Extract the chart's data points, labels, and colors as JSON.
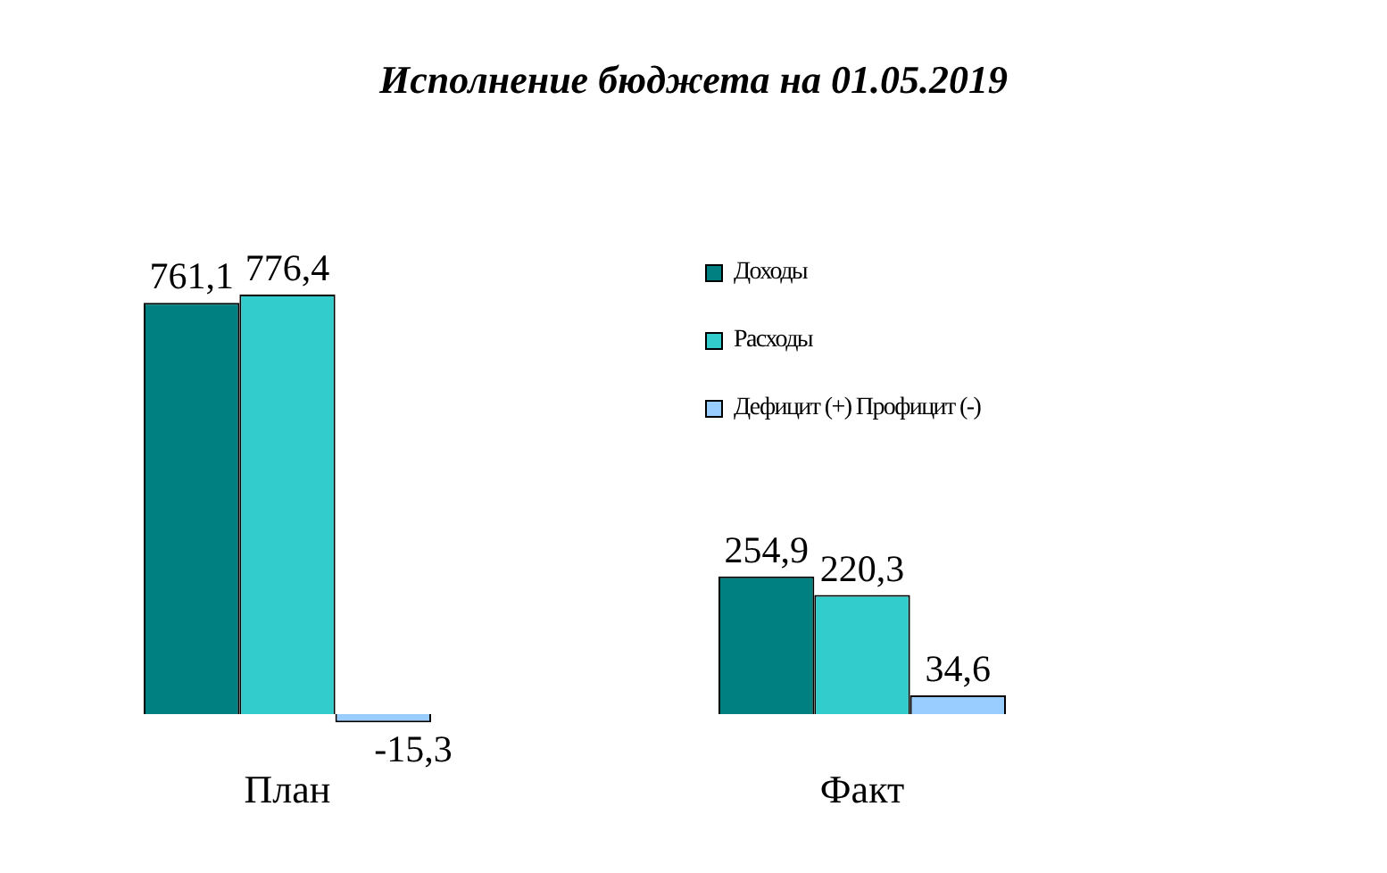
{
  "chart_data": {
    "type": "bar",
    "title": "Исполнение бюджета на 01.05.2019",
    "categories": [
      "План",
      "Факт"
    ],
    "series": [
      {
        "name": "Доходы",
        "color": "#008080",
        "values": [
          761.1,
          254.9
        ],
        "value_labels": [
          "761,1",
          "254,9"
        ]
      },
      {
        "name": "Расходы",
        "color": "#33cccc",
        "values": [
          776.4,
          220.3
        ],
        "value_labels": [
          "776,4",
          "220,3"
        ]
      },
      {
        "name": "Дефицит (+) Профицит (-)",
        "color": "#99ccff",
        "values": [
          -15.3,
          34.6
        ],
        "value_labels": [
          "-15,3",
          "34,6"
        ]
      }
    ],
    "legend": "right",
    "tick_labels": "x"
  }
}
